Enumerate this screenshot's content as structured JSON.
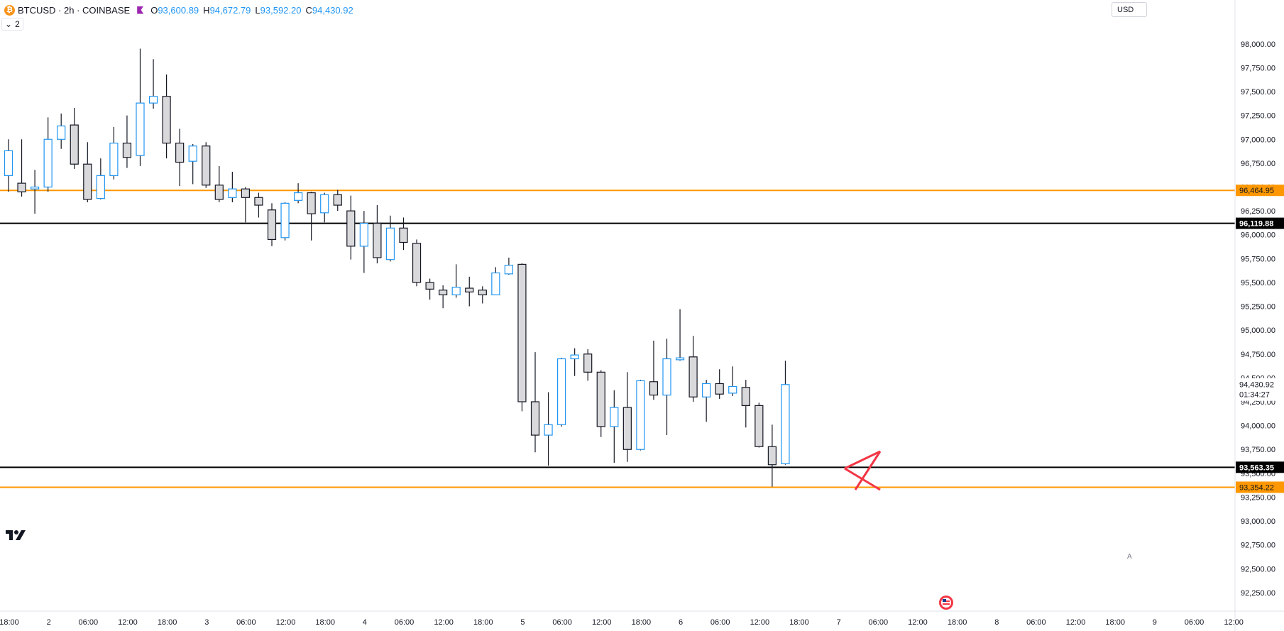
{
  "header": {
    "symbol_line": "BTCUSD · 2h · COINBASE",
    "ohlc": [
      {
        "key": "O",
        "value": "93,600.89"
      },
      {
        "key": "H",
        "value": "94,672.79"
      },
      {
        "key": "L",
        "value": "93,592.20"
      },
      {
        "key": "C",
        "value": "94,430.92"
      }
    ],
    "indicator_count": "2",
    "currency": "USD",
    "coin_glyph": "₿",
    "auto_label": "A"
  },
  "colors": {
    "up_border": "#2196f3",
    "down_border": "#131722",
    "down_fill": "#d9d9dc",
    "orange_line": "#ff9800",
    "black_line": "#000000",
    "cross": "#f23645",
    "axis_text": "#131722"
  },
  "chart_data": {
    "type": "candlestick",
    "symbol": "BTCUSD",
    "interval": "2h",
    "ylim": [
      92160,
      98140
    ],
    "y_ticks": [
      "98,000.00",
      "97,750.00",
      "97,500.00",
      "97,250.00",
      "97,000.00",
      "96,750.00",
      "96,500.00",
      "96,250.00",
      "96,000.00",
      "95,750.00",
      "95,500.00",
      "95,250.00",
      "95,000.00",
      "94,750.00",
      "94,500.00",
      "94,250.00",
      "94,000.00",
      "93,750.00",
      "93,500.00",
      "93,250.00",
      "93,000.00",
      "92,750.00",
      "92,500.00",
      "92,250.00"
    ],
    "x_ticks": [
      "18:00",
      "2",
      "06:00",
      "12:00",
      "18:00",
      "3",
      "06:00",
      "12:00",
      "18:00",
      "4",
      "06:00",
      "12:00",
      "18:00",
      "5",
      "06:00",
      "12:00",
      "18:00",
      "6",
      "06:00",
      "12:00",
      "18:00",
      "7",
      "06:00",
      "12:00",
      "18:00",
      "8",
      "06:00",
      "12:00",
      "18:00",
      "9",
      "06:00",
      "12:00"
    ],
    "candles": [
      {
        "o": 96620,
        "h": 97000,
        "l": 96450,
        "c": 96880
      },
      {
        "o": 96540,
        "h": 97000,
        "l": 96400,
        "c": 96450
      },
      {
        "o": 96480,
        "h": 96680,
        "l": 96220,
        "c": 96500
      },
      {
        "o": 96500,
        "h": 97230,
        "l": 96450,
        "c": 97000
      },
      {
        "o": 97000,
        "h": 97270,
        "l": 96900,
        "c": 97140
      },
      {
        "o": 97150,
        "h": 97330,
        "l": 96690,
        "c": 96740
      },
      {
        "o": 96740,
        "h": 96970,
        "l": 96340,
        "c": 96370
      },
      {
        "o": 96380,
        "h": 96800,
        "l": 96370,
        "c": 96620
      },
      {
        "o": 96620,
        "h": 97130,
        "l": 96580,
        "c": 96960
      },
      {
        "o": 96960,
        "h": 97250,
        "l": 96700,
        "c": 96810
      },
      {
        "o": 96830,
        "h": 97950,
        "l": 96720,
        "c": 97380
      },
      {
        "o": 97380,
        "h": 97840,
        "l": 97320,
        "c": 97450
      },
      {
        "o": 97450,
        "h": 97680,
        "l": 96800,
        "c": 96960
      },
      {
        "o": 96960,
        "h": 97110,
        "l": 96510,
        "c": 96760
      },
      {
        "o": 96770,
        "h": 96950,
        "l": 96530,
        "c": 96930
      },
      {
        "o": 96930,
        "h": 96970,
        "l": 96490,
        "c": 96520
      },
      {
        "o": 96520,
        "h": 96720,
        "l": 96340,
        "c": 96370
      },
      {
        "o": 96390,
        "h": 96660,
        "l": 96340,
        "c": 96480
      },
      {
        "o": 96480,
        "h": 96500,
        "l": 96130,
        "c": 96390
      },
      {
        "o": 96390,
        "h": 96440,
        "l": 96180,
        "c": 96310
      },
      {
        "o": 96260,
        "h": 96330,
        "l": 95880,
        "c": 95950
      },
      {
        "o": 95970,
        "h": 96340,
        "l": 95940,
        "c": 96330
      },
      {
        "o": 96360,
        "h": 96540,
        "l": 96330,
        "c": 96440
      },
      {
        "o": 96440,
        "h": 96450,
        "l": 95940,
        "c": 96220
      },
      {
        "o": 96230,
        "h": 96440,
        "l": 96130,
        "c": 96420
      },
      {
        "o": 96420,
        "h": 96470,
        "l": 96250,
        "c": 96310
      },
      {
        "o": 96250,
        "h": 96410,
        "l": 95740,
        "c": 95880
      },
      {
        "o": 95880,
        "h": 96250,
        "l": 95600,
        "c": 96120
      },
      {
        "o": 96120,
        "h": 96310,
        "l": 95700,
        "c": 95760
      },
      {
        "o": 95740,
        "h": 96200,
        "l": 95720,
        "c": 96070
      },
      {
        "o": 96070,
        "h": 96180,
        "l": 95840,
        "c": 95920
      },
      {
        "o": 95910,
        "h": 95950,
        "l": 95460,
        "c": 95500
      },
      {
        "o": 95500,
        "h": 95540,
        "l": 95320,
        "c": 95430
      },
      {
        "o": 95420,
        "h": 95470,
        "l": 95230,
        "c": 95370
      },
      {
        "o": 95370,
        "h": 95690,
        "l": 95340,
        "c": 95450
      },
      {
        "o": 95440,
        "h": 95560,
        "l": 95250,
        "c": 95400
      },
      {
        "o": 95420,
        "h": 95460,
        "l": 95280,
        "c": 95370
      },
      {
        "o": 95370,
        "h": 95660,
        "l": 95370,
        "c": 95600
      },
      {
        "o": 95590,
        "h": 95760,
        "l": 95580,
        "c": 95680
      },
      {
        "o": 95690,
        "h": 95700,
        "l": 94150,
        "c": 94250
      },
      {
        "o": 94250,
        "h": 94770,
        "l": 93720,
        "c": 93900
      },
      {
        "o": 93900,
        "h": 94350,
        "l": 93580,
        "c": 94010
      },
      {
        "o": 94010,
        "h": 94710,
        "l": 93990,
        "c": 94700
      },
      {
        "o": 94700,
        "h": 94810,
        "l": 94520,
        "c": 94740
      },
      {
        "o": 94750,
        "h": 94800,
        "l": 94470,
        "c": 94560
      },
      {
        "o": 94560,
        "h": 94580,
        "l": 93880,
        "c": 93990
      },
      {
        "o": 93990,
        "h": 94370,
        "l": 93610,
        "c": 94190
      },
      {
        "o": 94190,
        "h": 94560,
        "l": 93620,
        "c": 93750
      },
      {
        "o": 93750,
        "h": 94480,
        "l": 93740,
        "c": 94470
      },
      {
        "o": 94460,
        "h": 94890,
        "l": 94270,
        "c": 94320
      },
      {
        "o": 94320,
        "h": 94910,
        "l": 93900,
        "c": 94700
      },
      {
        "o": 94690,
        "h": 95220,
        "l": 94680,
        "c": 94710
      },
      {
        "o": 94720,
        "h": 94940,
        "l": 94250,
        "c": 94300
      },
      {
        "o": 94300,
        "h": 94480,
        "l": 94040,
        "c": 94440
      },
      {
        "o": 94440,
        "h": 94590,
        "l": 94280,
        "c": 94330
      },
      {
        "o": 94340,
        "h": 94620,
        "l": 94310,
        "c": 94410
      },
      {
        "o": 94400,
        "h": 94480,
        "l": 93980,
        "c": 94210
      },
      {
        "o": 94210,
        "h": 94240,
        "l": 93770,
        "c": 93780
      },
      {
        "o": 93780,
        "h": 94010,
        "l": 93360,
        "c": 93590
      },
      {
        "o": 93600,
        "h": 94680,
        "l": 93590,
        "c": 94430
      }
    ],
    "horizontal_levels": [
      {
        "price": 96464.95,
        "label": "96,464.95",
        "color": "#ff9800"
      },
      {
        "price": 96119.88,
        "label": "96,119.88",
        "color": "#000000"
      },
      {
        "price": 93563.35,
        "label": "93,563.35",
        "color": "#000000"
      },
      {
        "price": 93354.22,
        "label": "93,354.22",
        "color": "#ff9800"
      }
    ],
    "last_price": {
      "price": 94430.92,
      "label": "94,430.92",
      "countdown": "01:34:27"
    }
  }
}
